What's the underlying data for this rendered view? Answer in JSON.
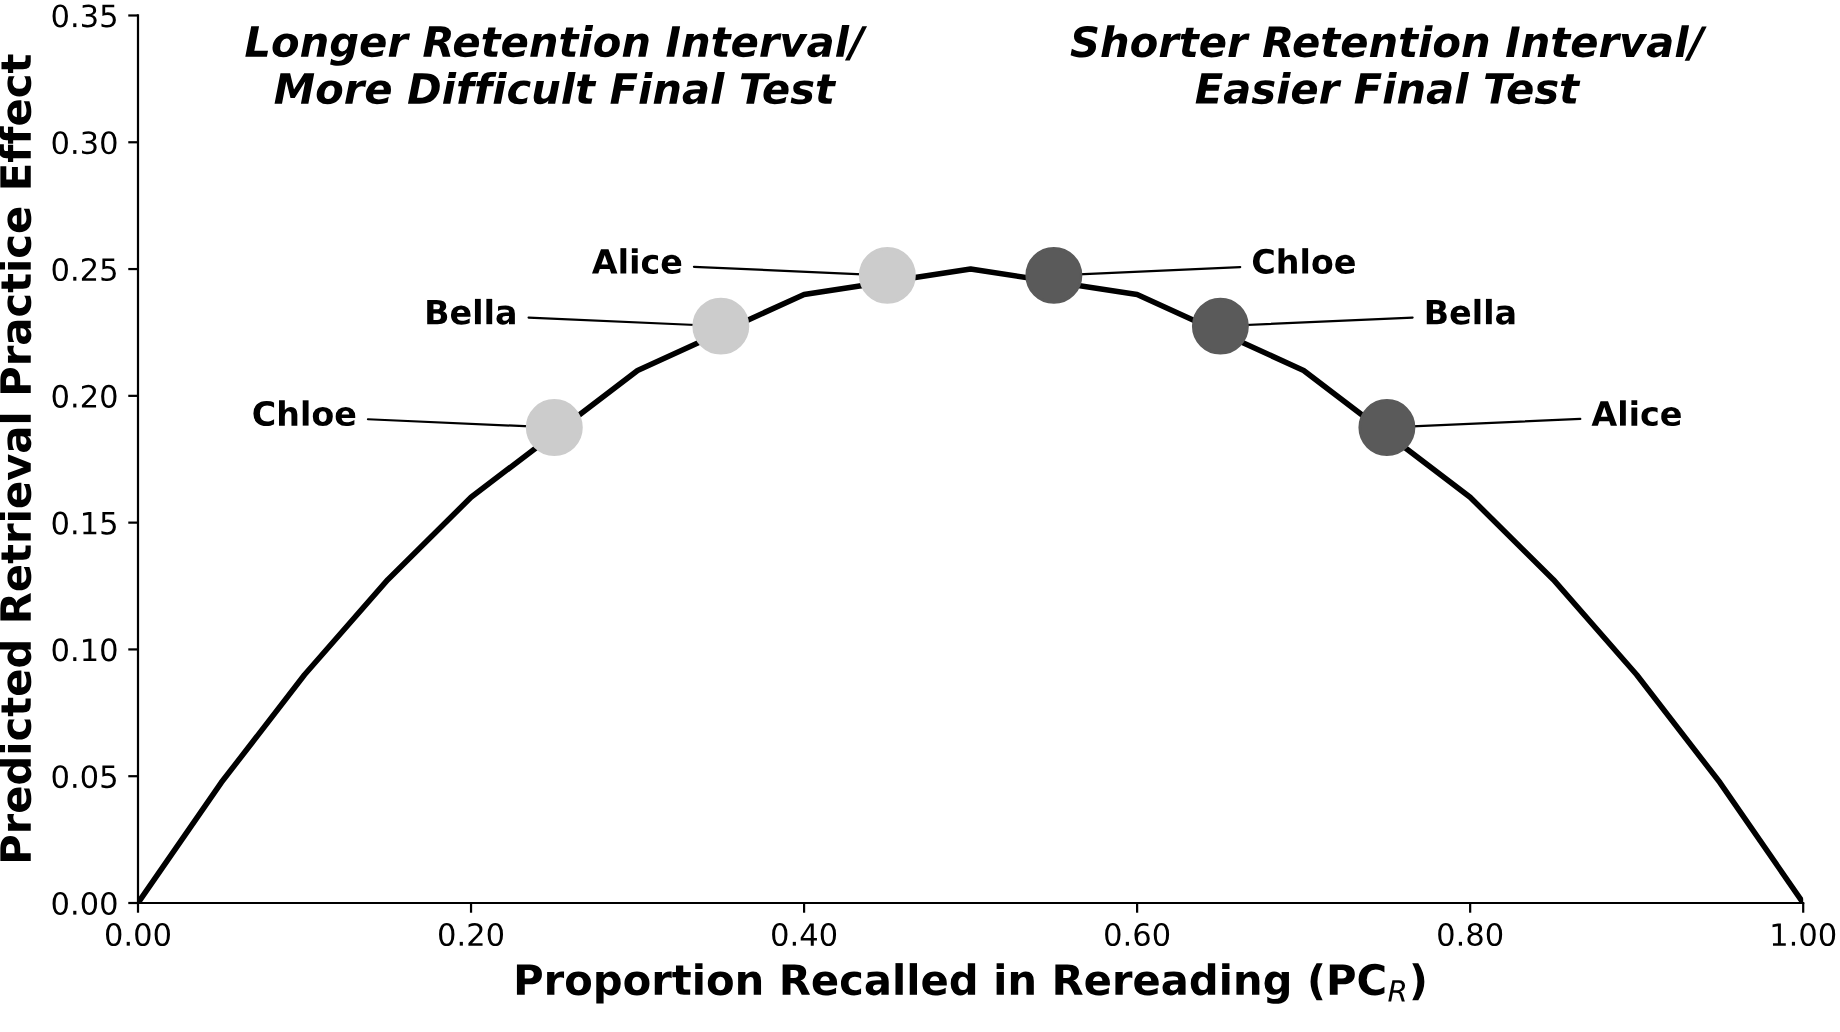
{
  "chart_data": {
    "type": "line",
    "xlabel": "Proportion Recalled in Rereading (PC$_{R}$)",
    "ylabel": "Predicted Retrieval Practice Effect",
    "xlim": [
      0,
      1
    ],
    "ylim": [
      0,
      0.35
    ],
    "xticks": [
      {
        "value": 0,
        "label": "0.00"
      },
      {
        "value": 0.2,
        "label": "0.20"
      },
      {
        "value": 0.4,
        "label": "0.40"
      },
      {
        "value": 0.6,
        "label": "0.60"
      },
      {
        "value": 0.8,
        "label": "0.80"
      },
      {
        "value": 1,
        "label": "1.00"
      }
    ],
    "yticks": [
      {
        "value": 0,
        "label": "0.00"
      },
      {
        "value": 0.05,
        "label": "0.05"
      },
      {
        "value": 0.1,
        "label": "0.10"
      },
      {
        "value": 0.15,
        "label": "0.15"
      },
      {
        "value": 0.2,
        "label": "0.20"
      },
      {
        "value": 0.25,
        "label": "0.25"
      },
      {
        "value": 0.3,
        "label": "0.30"
      },
      {
        "value": 0.35,
        "label": "0.35"
      }
    ],
    "grid": false,
    "legend": false,
    "series": [
      {
        "color": "#000000",
        "marker": "none",
        "line_style": "solid",
        "x": [
          0,
          0.05,
          0.1,
          0.15,
          0.2,
          0.3,
          0.4,
          0.5,
          0.6,
          0.7,
          0.8,
          0.85,
          0.9,
          0.95,
          1
        ],
        "values": [
          0,
          0.0475,
          0.09,
          0.1275,
          0.16,
          0.21,
          0.24,
          0.25,
          0.24,
          0.21,
          0.16,
          0.1275,
          0.09,
          0.0475,
          0
        ]
      },
      {
        "type": "scatter",
        "color": "#cccccc",
        "marker": "circle",
        "x": [
          0.25,
          0.35,
          0.45
        ],
        "values": [
          0.1875,
          0.2275,
          0.2475
        ]
      },
      {
        "type": "scatter",
        "color": "#5a5a5a",
        "marker": "circle",
        "x": [
          0.55,
          0.65,
          0.75
        ],
        "values": [
          0.2475,
          0.2275,
          0.1875
        ]
      }
    ],
    "annotations": [
      "Longer Retention Interval/\nMore Difficult Final Test",
      "Shorter Retention Interval/\nEasier Final Test",
      {
        "text": "Chloe",
        "x": 0.25,
        "y": 0.1875
      },
      {
        "text": "Bella",
        "x": 0.35,
        "y": 0.2275
      },
      {
        "text": "Alice",
        "x": 0.45,
        "y": 0.2475
      },
      {
        "text": "Chloe",
        "x": 0.55,
        "y": 0.2475
      },
      {
        "text": "Bella",
        "x": 0.65,
        "y": 0.2275
      },
      {
        "text": "Alice",
        "x": 0.75,
        "y": 0.1875
      }
    ]
  }
}
